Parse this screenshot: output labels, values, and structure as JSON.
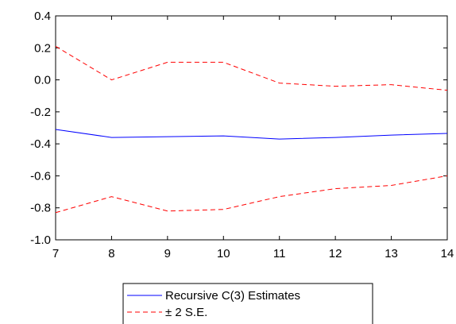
{
  "chart_data": {
    "type": "line",
    "title": "",
    "xlabel": "",
    "ylabel": "",
    "x": [
      7,
      8,
      9,
      10,
      11,
      12,
      13,
      14
    ],
    "xlim": [
      7,
      14
    ],
    "ylim": [
      -1.0,
      0.4
    ],
    "x_ticks": [
      "7",
      "8",
      "9",
      "10",
      "11",
      "12",
      "13",
      "14"
    ],
    "y_ticks": [
      "0.4",
      "0.2",
      "0.0",
      "-0.2",
      "-0.4",
      "-0.6",
      "-0.8",
      "-1.0"
    ],
    "y_tick_values": [
      0.4,
      0.2,
      0.0,
      -0.2,
      -0.4,
      -0.6,
      -0.8,
      -1.0
    ],
    "grid": false,
    "legend_position": "bottom",
    "series": [
      {
        "name": "Recursive C(3) Estimates",
        "values": [
          -0.31,
          -0.36,
          -0.355,
          -0.35,
          -0.37,
          -0.36,
          -0.345,
          -0.335
        ],
        "color": "#0000ff",
        "style": "solid"
      },
      {
        "name": "± 2 S.E.",
        "values": [
          0.21,
          0.0,
          0.11,
          0.11,
          -0.02,
          -0.04,
          -0.03,
          -0.065
        ],
        "color": "#ff0000",
        "style": "dashed"
      },
      {
        "name": "",
        "values": [
          -0.83,
          -0.73,
          -0.82,
          -0.81,
          -0.73,
          -0.68,
          -0.66,
          -0.6
        ],
        "color": "#ff0000",
        "style": "dashed"
      }
    ],
    "legend": [
      {
        "label": "Recursive C(3) Estimates",
        "color": "#0000ff",
        "style": "solid"
      },
      {
        "label": "± 2 S.E.",
        "color": "#ff0000",
        "style": "dashed"
      }
    ]
  }
}
